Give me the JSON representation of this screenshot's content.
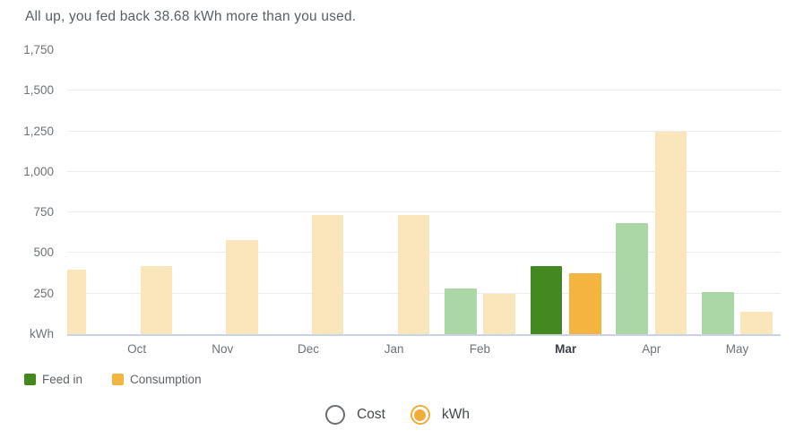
{
  "header": {
    "summary": "All up, you fed back 38.68 kWh more than you used."
  },
  "chart_data": {
    "type": "bar",
    "title": "All up, you fed back 38.68 kWh more than you used.",
    "categories": [
      "",
      "Oct",
      "Nov",
      "Dec",
      "Jan",
      "Feb",
      "Mar",
      "Apr",
      "May"
    ],
    "series": [
      {
        "name": "Feed in",
        "values": [
          0,
          0,
          0,
          0,
          0,
          280,
          418,
          683,
          258
        ]
      },
      {
        "name": "Consumption",
        "values": [
          400,
          420,
          580,
          735,
          735,
          250,
          375,
          1250,
          140
        ]
      }
    ],
    "highlighted_index": 6,
    "highlighted_category": "Mar",
    "first_bar_clipped_at_left_edge": true,
    "ylabel": "kWh",
    "ylim": [
      0,
      1750
    ],
    "ytick_step": 250,
    "y_ticks": [
      {
        "label": "1,750",
        "value": 1750
      },
      {
        "label": "1,500",
        "value": 1500
      },
      {
        "label": "1,250",
        "value": 1250
      },
      {
        "label": "1,000",
        "value": 1000
      },
      {
        "label": "750",
        "value": 750
      },
      {
        "label": "500",
        "value": 500
      },
      {
        "label": "250",
        "value": 250
      }
    ],
    "grid": true,
    "legend_position": "bottom-left",
    "colors": {
      "feed_in": "#43891f",
      "consumption": "#f4b440",
      "feed_in_muted": "#aad7a5",
      "consumption_muted": "#fbe5bb",
      "grid_line": "#ececec",
      "axis_line": "#c9d2e6"
    }
  },
  "legend": {
    "feed_in": "Feed in",
    "consumption": "Consumption"
  },
  "toggle": {
    "cost_label": "Cost",
    "kwh_label": "kWh",
    "selected": "kWh",
    "accent_color": "#f2ac38",
    "unselected_color": "#6b6f73"
  }
}
